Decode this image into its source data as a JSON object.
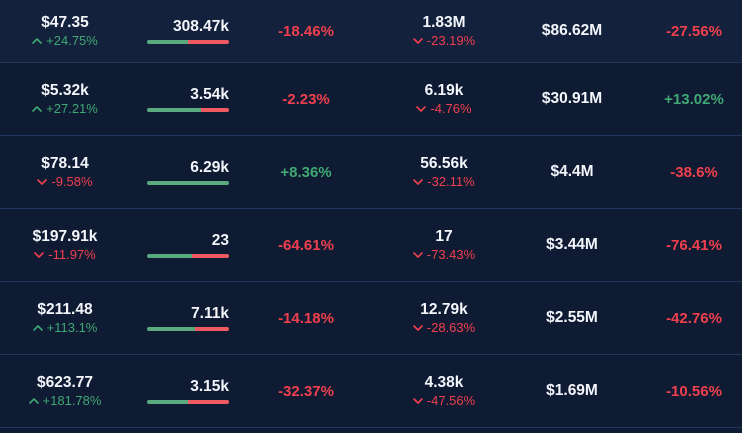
{
  "colors": {
    "background": "#0e1b33",
    "row_highlight": "#13213c",
    "separator": "#22375c",
    "up_text": "#3fa873",
    "down_text": "#f0404e",
    "bar_up": "#5aa97f",
    "bar_down": "#ef5a61",
    "value_text": "#f4f6fb"
  },
  "table": {
    "rows": [
      {
        "price": "$47.35",
        "price_change": "+24.75%",
        "volume": "308.47k",
        "volume_green_pct": 50,
        "change_short": "-18.46%",
        "count": "1.83M",
        "count_change": "-23.19%",
        "value": "$86.62M",
        "change_long": "-27.56%"
      },
      {
        "price": "$5.32k",
        "price_change": "+27.21%",
        "volume": "3.54k",
        "volume_green_pct": 66,
        "change_short": "-2.23%",
        "count": "6.19k",
        "count_change": "-4.76%",
        "value": "$30.91M",
        "change_long": "+13.02%"
      },
      {
        "price": "$78.14",
        "price_change": "-9.58%",
        "volume": "6.29k",
        "volume_green_pct": 100,
        "change_short": "+8.36%",
        "count": "56.56k",
        "count_change": "-32.11%",
        "value": "$4.4M",
        "change_long": "-38.6%"
      },
      {
        "price": "$197.91k",
        "price_change": "-11.97%",
        "volume": "23",
        "volume_green_pct": 55,
        "change_short": "-64.61%",
        "count": "17",
        "count_change": "-73.43%",
        "value": "$3.44M",
        "change_long": "-76.41%"
      },
      {
        "price": "$211.48",
        "price_change": "+113.1%",
        "volume": "7.11k",
        "volume_green_pct": 58,
        "change_short": "-14.18%",
        "count": "12.79k",
        "count_change": "-28.63%",
        "value": "$2.55M",
        "change_long": "-42.76%"
      },
      {
        "price": "$623.77",
        "price_change": "+181.78%",
        "volume": "3.15k",
        "volume_green_pct": 50,
        "change_short": "-32.37%",
        "count": "4.38k",
        "count_change": "-47.56%",
        "value": "$1.69M",
        "change_long": "-10.56%"
      }
    ]
  }
}
